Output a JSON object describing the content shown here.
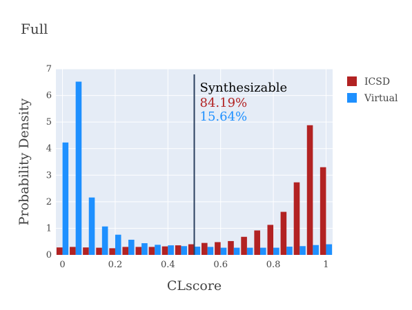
{
  "chart_data": {
    "type": "bar",
    "title": "Full",
    "xlabel": "CLscore",
    "ylabel": "Probability Density",
    "xlim": [
      -0.025,
      1.025
    ],
    "ylim": [
      0,
      7
    ],
    "x_ticks": [
      0,
      0.2,
      0.4,
      0.6,
      0.8,
      1
    ],
    "x_tick_labels": [
      "0",
      "0.2",
      "0.4",
      "0.6",
      "0.8",
      "1"
    ],
    "y_ticks": [
      0,
      1,
      2,
      3,
      4,
      5,
      6,
      7
    ],
    "y_tick_labels": [
      "0",
      "1",
      "2",
      "3",
      "4",
      "5",
      "6",
      "7"
    ],
    "grid": true,
    "legend_position": "top-right",
    "bin_width": 0.05,
    "x": [
      0,
      0.05,
      0.1,
      0.15,
      0.2,
      0.25,
      0.3,
      0.35,
      0.4,
      0.45,
      0.5,
      0.55,
      0.6,
      0.65,
      0.7,
      0.75,
      0.8,
      0.85,
      0.9,
      0.95,
      1.0
    ],
    "series": [
      {
        "name": "ICSD",
        "color": "#b22222",
        "values": [
          0.28,
          0.3,
          0.28,
          0.27,
          0.25,
          0.3,
          0.3,
          0.3,
          0.32,
          0.36,
          0.4,
          0.45,
          0.48,
          0.52,
          0.68,
          0.92,
          1.13,
          1.62,
          2.73,
          4.88,
          3.3
        ]
      },
      {
        "name": "Virtual",
        "color": "#1e90ff",
        "values": [
          4.23,
          6.52,
          2.16,
          1.07,
          0.76,
          0.57,
          0.44,
          0.38,
          0.36,
          0.33,
          0.31,
          0.3,
          0.27,
          0.27,
          0.27,
          0.27,
          0.27,
          0.31,
          0.33,
          0.37,
          0.4
        ]
      }
    ],
    "threshold": {
      "x": 0.5,
      "color": "#2a3f5f",
      "label": "Synthesizable",
      "icsd_percent": "84.19%",
      "virtual_percent": "15.64%"
    }
  }
}
